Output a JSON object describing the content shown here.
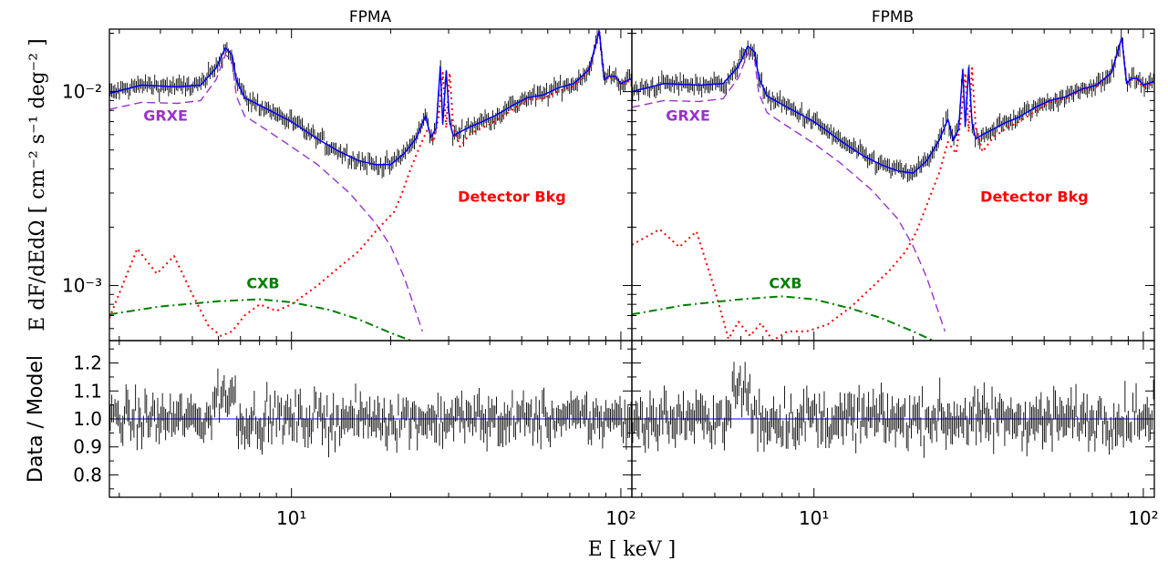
{
  "figure": {
    "ylabel_main": "E dF/dEdΩ [ cm⁻² s⁻¹ deg⁻² ]",
    "ylabel_ratio": "Data / Model",
    "xlabel": "E [ keV ]"
  },
  "colors": {
    "grxe": "#9a32cd",
    "detector": "#ff0000",
    "cxb": "#008000",
    "model": "#0000ff",
    "data": "#000000"
  },
  "chart_data": [
    {
      "type": "line",
      "panel": "FPMA",
      "title": "FPMA",
      "xscale": "log",
      "yscale": "log",
      "xlim": [
        2.8,
        108
      ],
      "ylim": [
        0.00052,
        0.021
      ],
      "yticks": [
        {
          "value": 0.01,
          "label": "10⁻²"
        },
        {
          "value": 0.001,
          "label": "10⁻³"
        }
      ],
      "annotations": [
        {
          "text": "GRXE",
          "x": 3.55,
          "y": 0.0071,
          "color": "#9a32cd"
        },
        {
          "text": "Detector Bkg",
          "x": 32,
          "y": 0.0027,
          "color": "#ff0000"
        },
        {
          "text": "CXB",
          "x": 7.3,
          "y": 0.00097,
          "color": "#008000"
        }
      ],
      "series": [
        {
          "name": "GRXE",
          "style": "dashed",
          "color": "#9a32cd",
          "x": [
            2.8,
            3.5,
            4.5,
            5.3,
            5.9,
            6.3,
            6.6,
            6.8,
            7.2,
            8,
            10,
            12,
            15,
            18,
            20,
            22,
            25
          ],
          "y": [
            0.0081,
            0.0088,
            0.0087,
            0.009,
            0.0115,
            0.0155,
            0.0145,
            0.0095,
            0.0075,
            0.0067,
            0.0052,
            0.0042,
            0.003,
            0.0021,
            0.0016,
            0.0011,
            0.00058
          ]
        },
        {
          "name": "Detector Bkg",
          "style": "dotted",
          "color": "#ff0000",
          "x": [
            2.8,
            3.4,
            3.9,
            4.4,
            5,
            5.6,
            6.1,
            6.6,
            7.2,
            8,
            9,
            10,
            12,
            14,
            16,
            18,
            19.5,
            20.5,
            21.5,
            23,
            24.5,
            26,
            27,
            28,
            28.8,
            29.5,
            30.2,
            31,
            32.5,
            35,
            38,
            42,
            47,
            52,
            58,
            65,
            72,
            80,
            86,
            89,
            92,
            96,
            100,
            108
          ],
          "y": [
            0.00068,
            0.00155,
            0.00115,
            0.00142,
            0.0009,
            0.00062,
            0.00055,
            0.00058,
            0.0007,
            0.0008,
            0.00074,
            0.0008,
            0.001,
            0.00125,
            0.0015,
            0.0019,
            0.0022,
            0.0024,
            0.0029,
            0.004,
            0.0052,
            0.0065,
            0.0055,
            0.0075,
            0.0125,
            0.0065,
            0.0125,
            0.0065,
            0.0052,
            0.0061,
            0.0065,
            0.0071,
            0.0081,
            0.0091,
            0.0092,
            0.0101,
            0.0107,
            0.0128,
            0.0205,
            0.0115,
            0.0118,
            0.0118,
            0.0108,
            0.0115
          ]
        },
        {
          "name": "CXB",
          "style": "dashdot",
          "color": "#008000",
          "x": [
            2.8,
            4,
            6,
            8,
            10,
            13,
            16,
            20,
            23
          ],
          "y": [
            0.00071,
            0.00078,
            0.00083,
            0.00085,
            0.00082,
            0.00075,
            0.00067,
            0.00057,
            0.00052
          ]
        },
        {
          "name": "Model",
          "style": "solid",
          "color": "#0000ff",
          "x": [
            2.8,
            3.5,
            4.5,
            5.3,
            5.9,
            6.3,
            6.6,
            6.8,
            7.2,
            8,
            10,
            12,
            14,
            16,
            18,
            20,
            22,
            24,
            25.5,
            26.5,
            27.5,
            28.3,
            28.8,
            29.5,
            30.2,
            31,
            32.5,
            35,
            38,
            42,
            47,
            52,
            58,
            65,
            72,
            80,
            86,
            89,
            92,
            96,
            100,
            108
          ],
          "y": [
            0.0098,
            0.0108,
            0.0106,
            0.0108,
            0.0132,
            0.0168,
            0.0155,
            0.0115,
            0.0093,
            0.0085,
            0.007,
            0.0057,
            0.0049,
            0.0044,
            0.0042,
            0.0042,
            0.0048,
            0.0058,
            0.0075,
            0.0058,
            0.0065,
            0.0135,
            0.0068,
            0.0128,
            0.007,
            0.0059,
            0.0062,
            0.0066,
            0.007,
            0.0076,
            0.0085,
            0.0093,
            0.0096,
            0.0105,
            0.011,
            0.013,
            0.0205,
            0.0115,
            0.012,
            0.012,
            0.011,
            0.0117
          ]
        }
      ]
    },
    {
      "type": "line",
      "panel": "FPMB",
      "title": "FPMB",
      "xscale": "log",
      "yscale": "log",
      "xlim": [
        2.8,
        108
      ],
      "ylim": [
        0.00052,
        0.021
      ],
      "yticks": [
        {
          "value": 0.01,
          "label": ""
        },
        {
          "value": 0.001,
          "label": ""
        }
      ],
      "annotations": [
        {
          "text": "GRXE",
          "x": 3.55,
          "y": 0.0071,
          "color": "#9a32cd"
        },
        {
          "text": "Detector Bkg",
          "x": 32,
          "y": 0.0027,
          "color": "#ff0000"
        },
        {
          "text": "CXB",
          "x": 7.3,
          "y": 0.00097,
          "color": "#008000"
        }
      ],
      "series": [
        {
          "name": "GRXE",
          "style": "dashed",
          "color": "#9a32cd",
          "x": [
            2.8,
            3.5,
            4.5,
            5.3,
            5.9,
            6.3,
            6.6,
            6.8,
            7.2,
            8,
            10,
            12,
            15,
            18,
            20,
            22,
            25
          ],
          "y": [
            0.0083,
            0.009,
            0.0089,
            0.0092,
            0.0118,
            0.0158,
            0.0148,
            0.0098,
            0.0078,
            0.0069,
            0.0054,
            0.0043,
            0.0031,
            0.0022,
            0.0016,
            0.0011,
            0.00058
          ]
        },
        {
          "name": "Detector Bkg",
          "style": "dotted",
          "color": "#ff0000",
          "x": [
            2.8,
            3.4,
            3.9,
            4.4,
            5,
            5.5,
            5.9,
            6.4,
            6.9,
            7.5,
            8.3,
            9.5,
            11,
            13,
            15,
            17,
            19,
            20.5,
            22,
            24,
            25.5,
            27,
            28,
            28.8,
            29.5,
            30.2,
            31,
            32.5,
            35,
            38,
            42,
            47,
            52,
            58,
            65,
            72,
            80,
            86,
            89,
            92,
            96,
            100,
            108
          ],
          "y": [
            0.00162,
            0.00195,
            0.00158,
            0.0019,
            0.00095,
            0.00053,
            0.00065,
            0.00055,
            0.00064,
            0.00052,
            0.00058,
            0.00058,
            0.00063,
            0.00078,
            0.00098,
            0.0012,
            0.0015,
            0.0019,
            0.0026,
            0.0038,
            0.0055,
            0.0048,
            0.0075,
            0.0125,
            0.0062,
            0.0132,
            0.0065,
            0.0049,
            0.0058,
            0.0064,
            0.007,
            0.0079,
            0.0088,
            0.0092,
            0.0102,
            0.0106,
            0.0125,
            0.019,
            0.011,
            0.0115,
            0.0115,
            0.0105,
            0.0112
          ]
        },
        {
          "name": "CXB",
          "style": "dashdot",
          "color": "#008000",
          "x": [
            2.8,
            4,
            6,
            8,
            10,
            13,
            16,
            20,
            23
          ],
          "y": [
            0.00071,
            0.00079,
            0.00085,
            0.00088,
            0.00085,
            0.00076,
            0.00068,
            0.00058,
            0.00052
          ]
        },
        {
          "name": "Model",
          "style": "solid",
          "color": "#0000ff",
          "x": [
            2.8,
            3.5,
            4.5,
            5.3,
            5.9,
            6.3,
            6.6,
            6.8,
            7.2,
            8,
            10,
            12,
            14,
            16,
            18,
            20,
            22,
            24,
            25.5,
            26.5,
            27.5,
            28.3,
            28.8,
            29.5,
            30.2,
            31,
            32.5,
            35,
            38,
            42,
            47,
            52,
            58,
            65,
            72,
            80,
            86,
            89,
            92,
            96,
            100,
            108
          ],
          "y": [
            0.01,
            0.011,
            0.0108,
            0.011,
            0.0135,
            0.0172,
            0.016,
            0.0118,
            0.0095,
            0.0086,
            0.007,
            0.0056,
            0.0047,
            0.0042,
            0.0039,
            0.0038,
            0.0044,
            0.0056,
            0.0072,
            0.0056,
            0.0064,
            0.013,
            0.0066,
            0.0133,
            0.0069,
            0.0057,
            0.006,
            0.0064,
            0.0069,
            0.0074,
            0.0083,
            0.009,
            0.0094,
            0.0103,
            0.0108,
            0.0125,
            0.019,
            0.011,
            0.0117,
            0.0117,
            0.0108,
            0.0113
          ]
        }
      ]
    },
    {
      "type": "scatter",
      "panel": "FPMA ratio",
      "title": "",
      "xscale": "log",
      "xlim": [
        2.8,
        108
      ],
      "ylim": [
        0.72,
        1.28
      ],
      "yticks": [
        {
          "value": 0.8,
          "label": "0.8"
        },
        {
          "value": 0.9,
          "label": "0.9"
        },
        {
          "value": 1.0,
          "label": "1.0"
        },
        {
          "value": 1.1,
          "label": "1.1"
        },
        {
          "value": 1.2,
          "label": "1.2"
        }
      ],
      "reference_line": 1.0,
      "ratio_noise": {
        "points": 330,
        "spread": 0.055,
        "excess_band": [
          5.8,
          6.8,
          1.08
        ]
      }
    },
    {
      "type": "scatter",
      "panel": "FPMB ratio",
      "title": "",
      "xscale": "log",
      "xlim": [
        2.8,
        108
      ],
      "ylim": [
        0.72,
        1.28
      ],
      "yticks": [
        {
          "value": 0.8,
          "label": ""
        },
        {
          "value": 0.9,
          "label": ""
        },
        {
          "value": 1.0,
          "label": ""
        },
        {
          "value": 1.1,
          "label": ""
        },
        {
          "value": 1.2,
          "label": ""
        }
      ],
      "reference_line": 1.0,
      "ratio_noise": {
        "points": 330,
        "spread": 0.06,
        "excess_band": [
          5.6,
          6.4,
          1.1
        ]
      }
    }
  ],
  "xticks": [
    {
      "value": 10,
      "label": "10¹"
    },
    {
      "value": 100,
      "label": "10²"
    }
  ]
}
